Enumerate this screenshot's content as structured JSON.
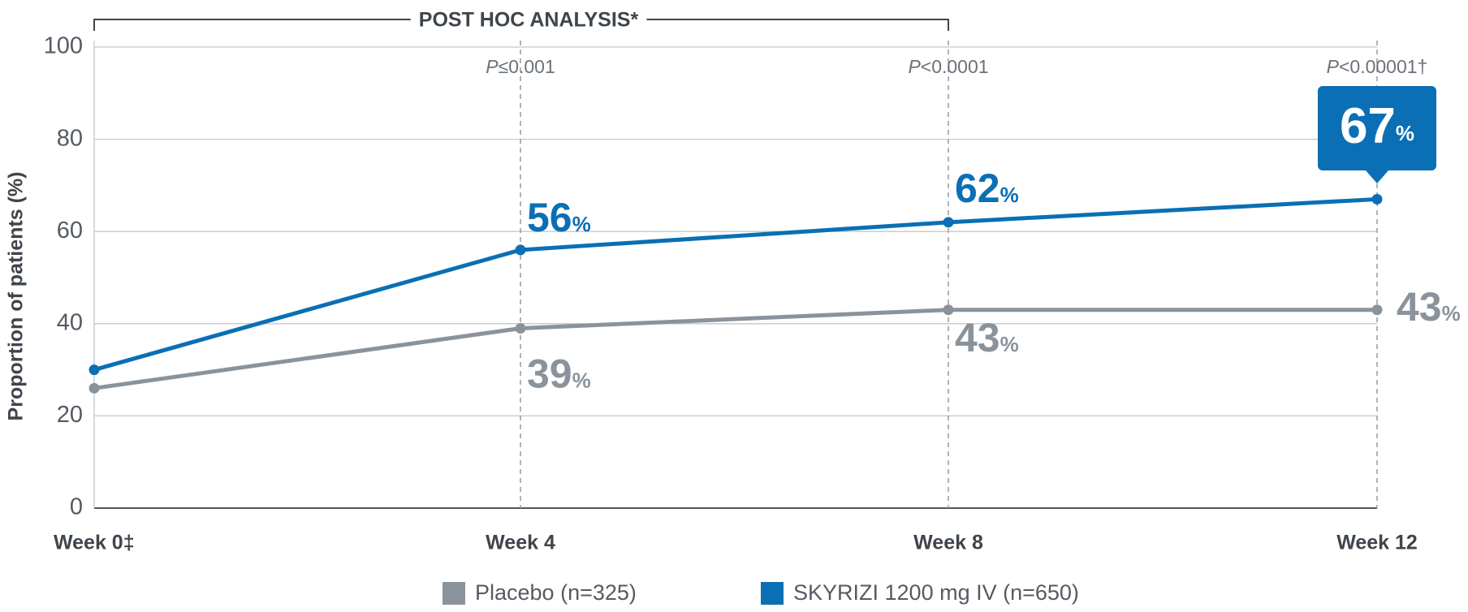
{
  "chart_data": {
    "type": "line",
    "title": "POST HOC ANALYSIS*",
    "y_label": "Proportion of patients (%)",
    "categories": [
      "Week 0‡",
      "Week 4",
      "Week 8",
      "Week 12"
    ],
    "ylim": [
      0,
      100
    ],
    "yticks": [
      0,
      20,
      40,
      60,
      80,
      100
    ],
    "grid": true,
    "annotations": [
      null,
      "P≤0.001",
      "P<0.0001",
      "P<0.00001†"
    ],
    "series": [
      {
        "name": "Placebo (n=325)",
        "color": "#8a939c",
        "values": [
          26,
          39,
          43,
          43
        ],
        "value_labels": [
          null,
          "39%",
          "43%",
          "43%"
        ]
      },
      {
        "name": "SKYRIZI 1200 mg IV (n=650)",
        "color": "#0a6fb5",
        "values": [
          30,
          56,
          62,
          67
        ],
        "value_labels": [
          null,
          "56%",
          "62%",
          "67%"
        ]
      }
    ]
  }
}
